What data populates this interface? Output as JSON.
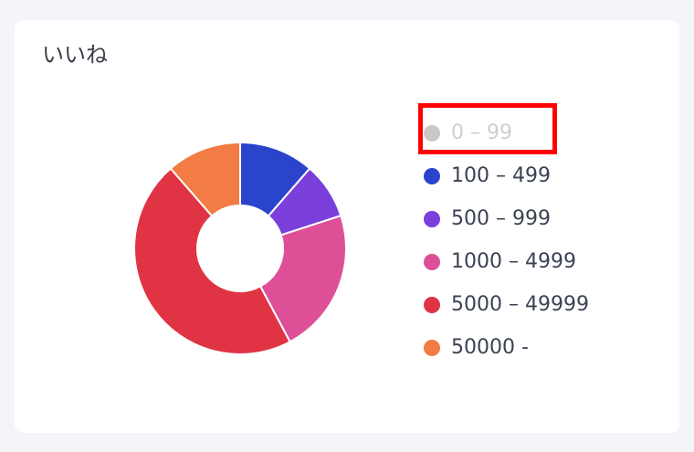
{
  "card": {
    "title": "いいね"
  },
  "chart_data": {
    "type": "pie",
    "donut": true,
    "legend_position": "right",
    "categories": [
      "0 - 99",
      "100 - 499",
      "500 - 999",
      "1000 - 4999",
      "5000 - 49999",
      "50000 -"
    ],
    "values": [
      0,
      11.4,
      8.6,
      22.2,
      46.4,
      11.4
    ],
    "hidden": [
      true,
      false,
      false,
      false,
      false,
      false
    ],
    "colors": [
      "#c8c8c8",
      "#2b44cc",
      "#7b3fdc",
      "#dd5098",
      "#e03444",
      "#f27c43"
    ]
  },
  "annotation": {
    "highlight_color": "#ff0000"
  }
}
